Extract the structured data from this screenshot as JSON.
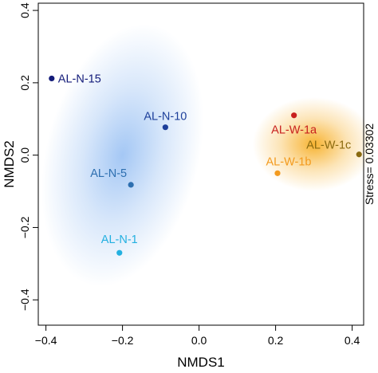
{
  "chart_data": {
    "type": "scatter",
    "title": "",
    "xlabel": "NMDS1",
    "ylabel": "NMDS2",
    "xlim": [
      -0.42,
      0.43
    ],
    "ylim": [
      -0.47,
      0.42
    ],
    "xticks": [
      -0.4,
      -0.2,
      0.0,
      0.2,
      0.4
    ],
    "yticks": [
      -0.4,
      -0.2,
      0.0,
      0.2,
      0.4
    ],
    "xtick_labels": [
      "−0.4",
      "−0.2",
      "0.0",
      "0.2",
      "0.4"
    ],
    "ytick_labels": [
      "−0.4",
      "−0.2",
      "0.0",
      "0.2",
      "0.4"
    ],
    "annotation": "Stress= 0.03302",
    "grid": false,
    "points": [
      {
        "label": "AL-N-15",
        "x": -0.385,
        "y": 0.212,
        "color": "#141c7a"
      },
      {
        "label": "AL-N-10",
        "x": -0.088,
        "y": 0.077,
        "color": "#1d3f9a"
      },
      {
        "label": "AL-N-5",
        "x": -0.178,
        "y": -0.082,
        "color": "#2d6fb0"
      },
      {
        "label": "AL-N-1",
        "x": -0.208,
        "y": -0.27,
        "color": "#23b0e0"
      },
      {
        "label": "AL-W-1a",
        "x": 0.248,
        "y": 0.11,
        "color": "#c8201e"
      },
      {
        "label": "AL-W-1b",
        "x": 0.205,
        "y": -0.05,
        "color": "#f39a1d"
      },
      {
        "label": "AL-W-1c",
        "x": 0.418,
        "y": 0.002,
        "color": "#8a6a10"
      }
    ],
    "groups": [
      {
        "cx": -0.2,
        "cy": 0.0,
        "rx": 0.2,
        "ry": 0.37,
        "rotate_deg": 14,
        "color": "#4a90ea"
      },
      {
        "cx": 0.3,
        "cy": 0.03,
        "rx": 0.16,
        "ry": 0.13,
        "rotate_deg": 0,
        "color": "#f6a60e"
      }
    ]
  }
}
